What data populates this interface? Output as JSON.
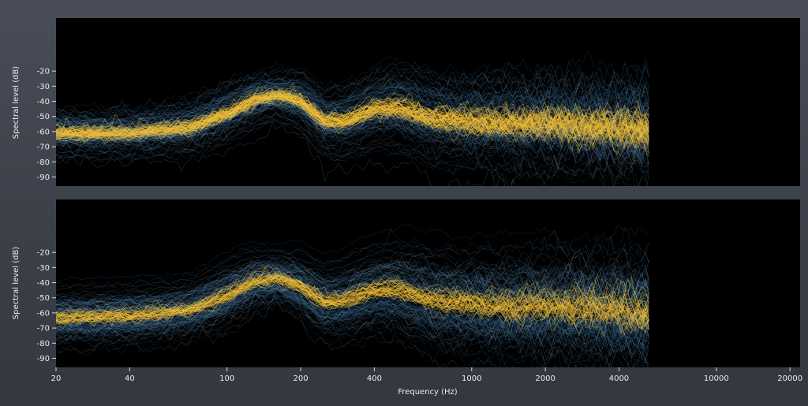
{
  "chart_data": {
    "type": "line",
    "xscale": "log",
    "xlabel": "Frequency (Hz)",
    "ylabel": "Spectral level (dB)",
    "xlim": [
      20,
      22000
    ],
    "ylim": [
      -96,
      15
    ],
    "x_ticks": [
      20,
      40,
      100,
      200,
      400,
      1000,
      2000,
      4000,
      10000,
      20000
    ],
    "y_ticks": [
      -20,
      -30,
      -40,
      -50,
      -60,
      -70,
      -80,
      -90
    ],
    "grid": false,
    "colors": {
      "plot_background": "#000000",
      "trace": "#3f7fb4",
      "trace_light": "#8fb4d1",
      "density_peak": "#f6c23a"
    },
    "panels": [
      {
        "id": "top",
        "frequencies": [
          20,
          40,
          70,
          100,
          130,
          160,
          200,
          250,
          300,
          400,
          500,
          700,
          1000,
          1500,
          2000,
          3000,
          4000,
          5300
        ],
        "median_db": [
          -61,
          -61,
          -57,
          -48,
          -39,
          -36,
          -40,
          -53,
          -53,
          -45,
          -44,
          -51,
          -53,
          -55,
          -54,
          -56,
          -57,
          -59
        ],
        "spread_db": [
          7,
          7,
          8,
          9,
          8,
          7,
          9,
          10,
          11,
          12,
          13,
          14,
          14,
          15,
          15,
          15,
          16,
          16
        ]
      },
      {
        "id": "bottom",
        "frequencies": [
          20,
          40,
          70,
          100,
          130,
          160,
          200,
          250,
          300,
          400,
          500,
          700,
          1000,
          1500,
          2000,
          3000,
          4000,
          5300
        ],
        "median_db": [
          -63,
          -62,
          -58,
          -48,
          -39,
          -37,
          -42,
          -53,
          -52,
          -45,
          -44,
          -52,
          -54,
          -56,
          -55,
          -57,
          -58,
          -60
        ],
        "spread_db": [
          8,
          8,
          8,
          9,
          8,
          7,
          9,
          10,
          11,
          12,
          13,
          14,
          14,
          15,
          15,
          15,
          16,
          16
        ]
      }
    ],
    "cutoff_hz": 5300
  }
}
